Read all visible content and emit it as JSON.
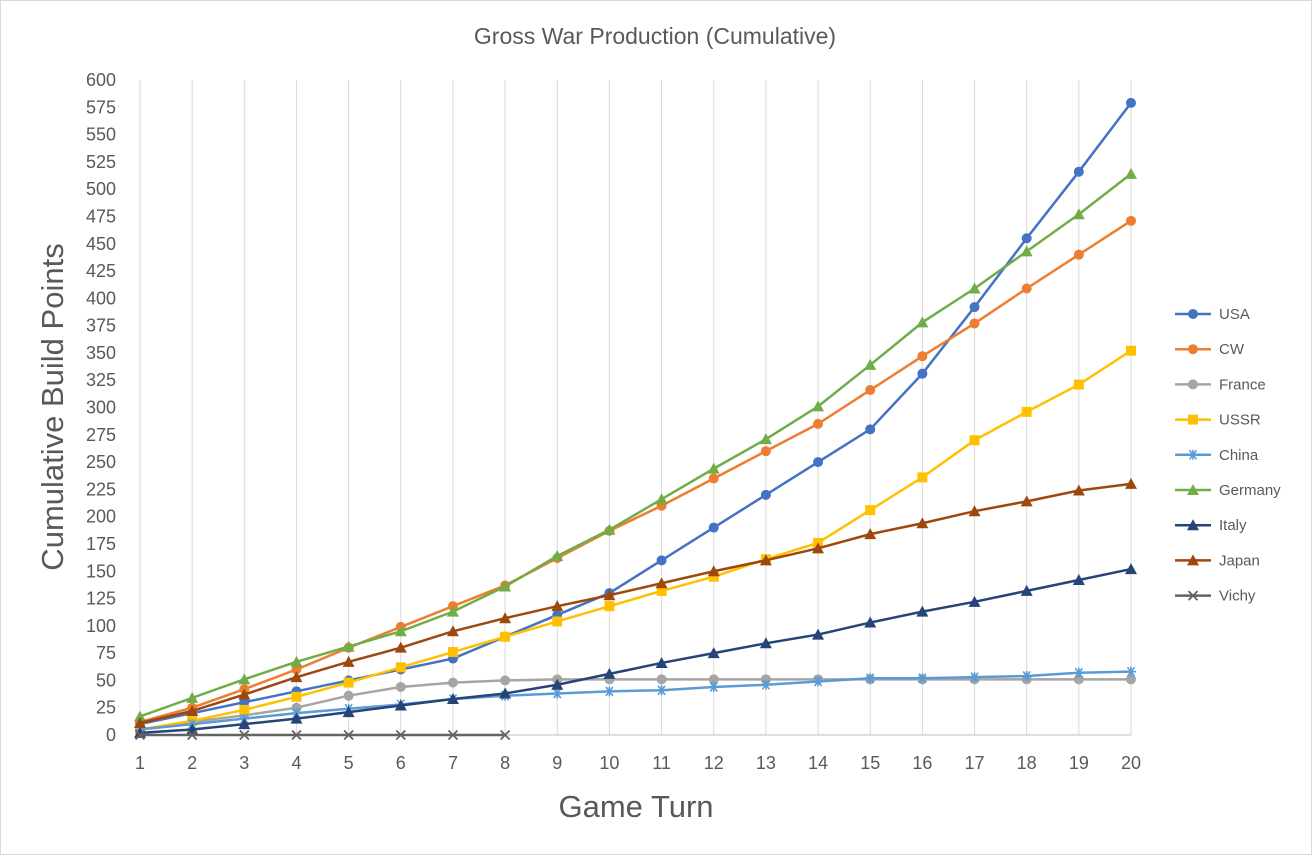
{
  "chart_data": {
    "type": "line",
    "title": "Gross War Production (Cumulative)",
    "xlabel": "Game Turn",
    "ylabel": "Cumulative Build Points",
    "x": [
      1,
      2,
      3,
      4,
      5,
      6,
      7,
      8,
      9,
      10,
      11,
      12,
      13,
      14,
      15,
      16,
      17,
      18,
      19,
      20
    ],
    "ylim": [
      0,
      600
    ],
    "ytick_step": 25,
    "grid": "vertical",
    "legend": "right",
    "series": [
      {
        "name": "USA",
        "color": "#4472c4",
        "marker": "circle",
        "values": [
          10,
          20,
          30,
          40,
          50,
          60,
          70,
          90,
          110,
          130,
          160,
          190,
          220,
          250,
          280,
          331,
          392,
          455,
          516,
          579
        ]
      },
      {
        "name": "CW",
        "color": "#ed7d31",
        "marker": "circle",
        "values": [
          12,
          25,
          42,
          60,
          80,
          99,
          118,
          137,
          162,
          187,
          210,
          235,
          260,
          285,
          316,
          347,
          377,
          409,
          440,
          471
        ]
      },
      {
        "name": "France",
        "color": "#a5a5a5",
        "marker": "circle",
        "values": [
          5,
          12,
          18,
          25,
          36,
          44,
          48,
          50,
          51,
          51,
          51,
          51,
          51,
          51,
          51,
          51,
          51,
          51,
          51,
          51
        ]
      },
      {
        "name": "USSR",
        "color": "#ffc000",
        "marker": "square",
        "values": [
          5,
          13,
          23,
          35,
          48,
          62,
          76,
          90,
          104,
          118,
          132,
          145,
          161,
          176,
          206,
          236,
          270,
          296,
          321,
          352
        ]
      },
      {
        "name": "China",
        "color": "#5b9bd5",
        "marker": "star",
        "values": [
          5,
          10,
          15,
          20,
          24,
          28,
          33,
          36,
          38,
          40,
          41,
          44,
          46,
          49,
          52,
          52,
          53,
          54,
          57,
          58
        ]
      },
      {
        "name": "Germany",
        "color": "#70ad47",
        "marker": "triangle",
        "values": [
          17,
          34,
          51,
          67,
          81,
          95,
          113,
          136,
          164,
          188,
          216,
          244,
          271,
          301,
          339,
          378,
          409,
          443,
          477,
          514
        ]
      },
      {
        "name": "Italy",
        "color": "#264478",
        "marker": "triangle",
        "values": [
          2,
          5,
          10,
          15,
          21,
          27,
          33,
          38,
          46,
          56,
          66,
          75,
          84,
          92,
          103,
          113,
          122,
          132,
          142,
          152
        ]
      },
      {
        "name": "Japan",
        "color": "#9e480e",
        "marker": "triangle",
        "values": [
          11,
          22,
          37,
          53,
          67,
          80,
          95,
          107,
          118,
          128,
          139,
          150,
          160,
          171,
          184,
          194,
          205,
          214,
          224,
          230
        ]
      },
      {
        "name": "Vichy",
        "color": "#636363",
        "marker": "x",
        "values": [
          0,
          0,
          0,
          0,
          0,
          0,
          0,
          0,
          null,
          null,
          null,
          null,
          null,
          null,
          null,
          null,
          null,
          null,
          null,
          null
        ]
      }
    ]
  }
}
